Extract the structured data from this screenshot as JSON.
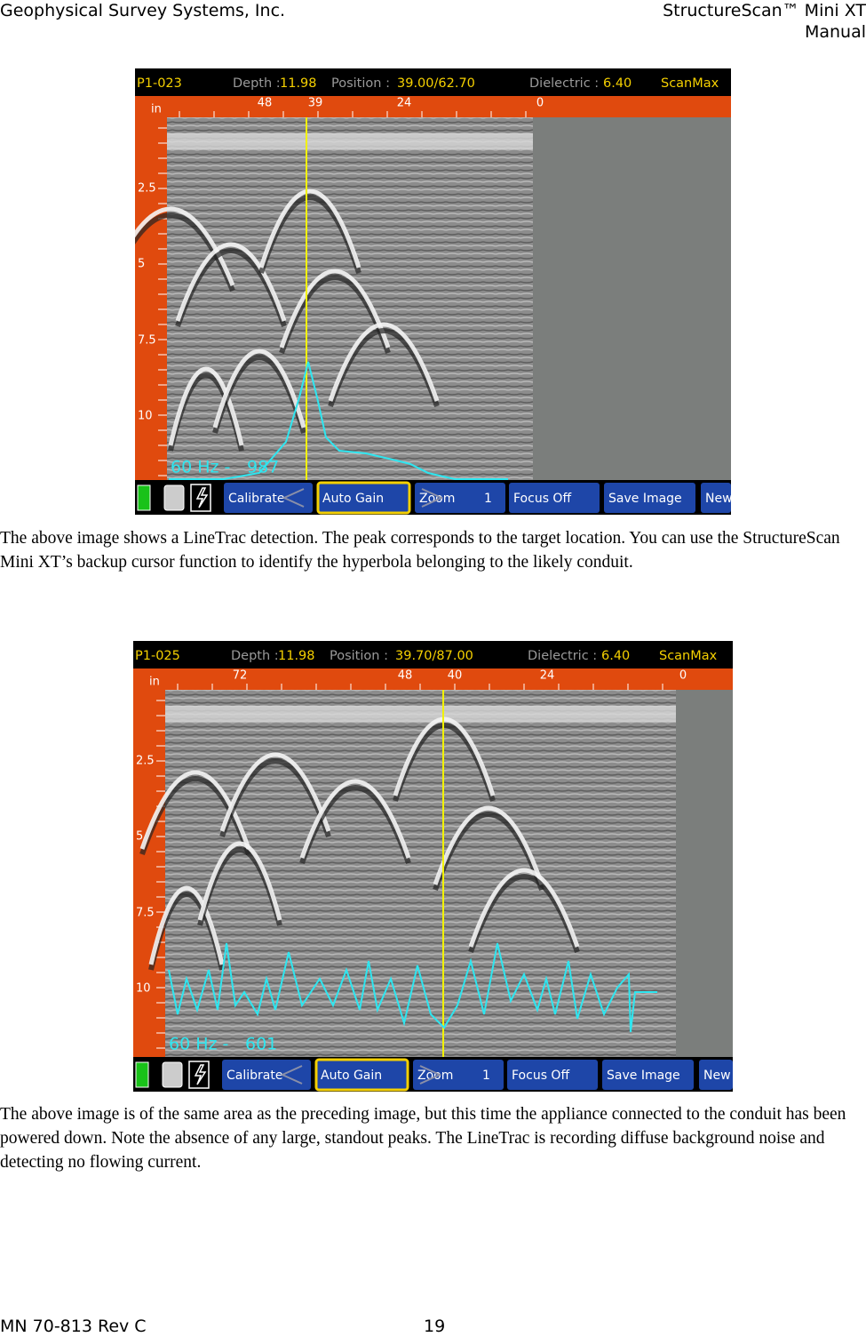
{
  "header": {
    "left": "Geophysical Survey Systems, Inc.",
    "right_line1": "StructureScan™ Mini XT",
    "right_line2": "Manual"
  },
  "screenshots": [
    {
      "file": "P1-023",
      "depth_label": "Depth :",
      "depth": "11.98",
      "position_label": "Position :",
      "position": "39.00/62.70",
      "dielectric_label": "Dielectric :",
      "dielectric": "6.40",
      "mode": "ScanMax",
      "unit": "in",
      "ruler": [
        "48",
        "39",
        "24",
        "0"
      ],
      "depth_ticks": [
        "2.5",
        "5",
        "7.5",
        "10"
      ],
      "linetrac": "60 Hz -",
      "linetrac_value": "987",
      "buttons": {
        "calibrate": "Calibrate",
        "auto_gain": "Auto Gain",
        "zoom": "Zoom",
        "zoom_level": "1",
        "focus": "Focus Off",
        "save": "Save Image",
        "new": "New"
      },
      "caption": "The above image shows a LineTrac detection. The peak corresponds to the target location. You can use the StructureScan Mini XT’s backup cursor function to identify the hyperbola belonging to the likely conduit."
    },
    {
      "file": "P1-025",
      "depth_label": "Depth :",
      "depth": "11.98",
      "position_label": "Position :",
      "position": "39.70/87.00",
      "dielectric_label": "Dielectric :",
      "dielectric": "6.40",
      "mode": "ScanMax",
      "unit": "in",
      "ruler": [
        "72",
        "48",
        "40",
        "24",
        "0"
      ],
      "depth_ticks": [
        "2.5",
        "5",
        "7.5",
        "10"
      ],
      "linetrac": "60 Hz -",
      "linetrac_value": "601",
      "buttons": {
        "calibrate": "Calibrate",
        "auto_gain": "Auto Gain",
        "zoom": "Zoom",
        "zoom_level": "1",
        "focus": "Focus Off",
        "save": "Save Image",
        "new": "New"
      },
      "caption": "The above image is of the same area as the preceding image, but this time the appliance connected to the conduit has been powered down. Note the absence of any large, standout peaks. The LineTrac is recording diffuse background noise and detecting no flowing current."
    }
  ],
  "footer": {
    "left": "MN 70-813 Rev C",
    "page": "19"
  }
}
